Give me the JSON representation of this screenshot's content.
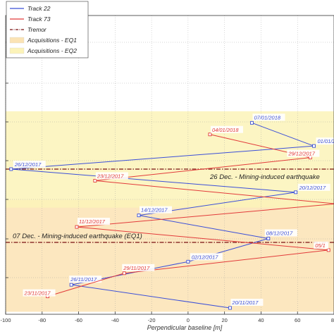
{
  "chart_data": {
    "type": "line",
    "xlabel": "Perpendicular baseline [m]",
    "ylabel": "",
    "xlim": [
      -100,
      80
    ],
    "ylim": [
      "2017-11-19",
      "2018-01-10"
    ],
    "grid": true,
    "legend_position": "top-left",
    "x_ticks": [
      "-100",
      "-80",
      "-60",
      "-40",
      "-20",
      "0",
      "20",
      "40",
      "60",
      "80"
    ],
    "series": [
      {
        "name": "Track 22",
        "color": "#3b4fd8",
        "points": [
          {
            "date": "2017-11-20",
            "baseline": 23,
            "label": "20/11/2017"
          },
          {
            "date": "2017-11-26",
            "baseline": -64,
            "label": "26/11/2017"
          },
          {
            "date": "2017-12-02",
            "baseline": 0,
            "label": "02/12/2017"
          },
          {
            "date": "2017-12-08",
            "baseline": 44,
            "label": "08/12/2017"
          },
          {
            "date": "2017-12-14",
            "baseline": -27,
            "label": "14/12/2017"
          },
          {
            "date": "2017-12-20",
            "baseline": 59,
            "label": "20/12/2017"
          },
          {
            "date": "2017-12-26",
            "baseline": -97,
            "label": "26/12/2017"
          },
          {
            "date": "2018-01-01",
            "baseline": 69,
            "label": "01/01/2"
          },
          {
            "date": "2018-01-07",
            "baseline": 35,
            "label": "07/01/2018"
          }
        ]
      },
      {
        "name": "Track 73",
        "color": "#e23a3a",
        "points": [
          {
            "date": "2017-11-23",
            "baseline": -77,
            "label": "23/11/2017"
          },
          {
            "date": "2017-11-29",
            "baseline": -35,
            "label": "29/11/2017"
          },
          {
            "date": "2017-12-05",
            "baseline": 77,
            "label": "05/1"
          },
          {
            "date": "2017-12-11",
            "baseline": -61,
            "label": "11/12/2017"
          },
          {
            "date": "2017-12-17",
            "baseline": 81,
            "label": ""
          },
          {
            "date": "2017-12-23",
            "baseline": -51,
            "label": "23/12/2017"
          },
          {
            "date": "2017-12-29",
            "baseline": 67,
            "label": "29/12/2017"
          },
          {
            "date": "2018-01-04",
            "baseline": 12,
            "label": "04/01/2018"
          }
        ]
      }
    ],
    "tremors": [
      {
        "date": "2017-12-07",
        "label": "07 Dec. - Mining-induced earthquake (EQ1)"
      },
      {
        "date": "2017-12-26",
        "label": "26 Dec. - Mining-induced earthquake"
      }
    ],
    "bands": [
      {
        "name": "Acquisitions - EQ1",
        "from": "2017-11-19",
        "to": "2017-12-18",
        "color": "#fbe3b4"
      },
      {
        "name": "Acquisitions - EQ2",
        "from": "2017-12-16",
        "to": "2018-01-10",
        "color": "#fcf3b9"
      }
    ],
    "legend": [
      {
        "label": "Track 22",
        "kind": "line",
        "color": "#3b4fd8"
      },
      {
        "label": "Track 73",
        "kind": "line",
        "color": "#e23a3a"
      },
      {
        "label": "Tremor",
        "kind": "dashdot",
        "color": "#7a1010"
      },
      {
        "label": "Acquisitions - EQ1",
        "kind": "patch",
        "color": "#fbe3b4"
      },
      {
        "label": "Acquisitions - EQ2",
        "kind": "patch",
        "color": "#fcf3b9"
      }
    ]
  }
}
